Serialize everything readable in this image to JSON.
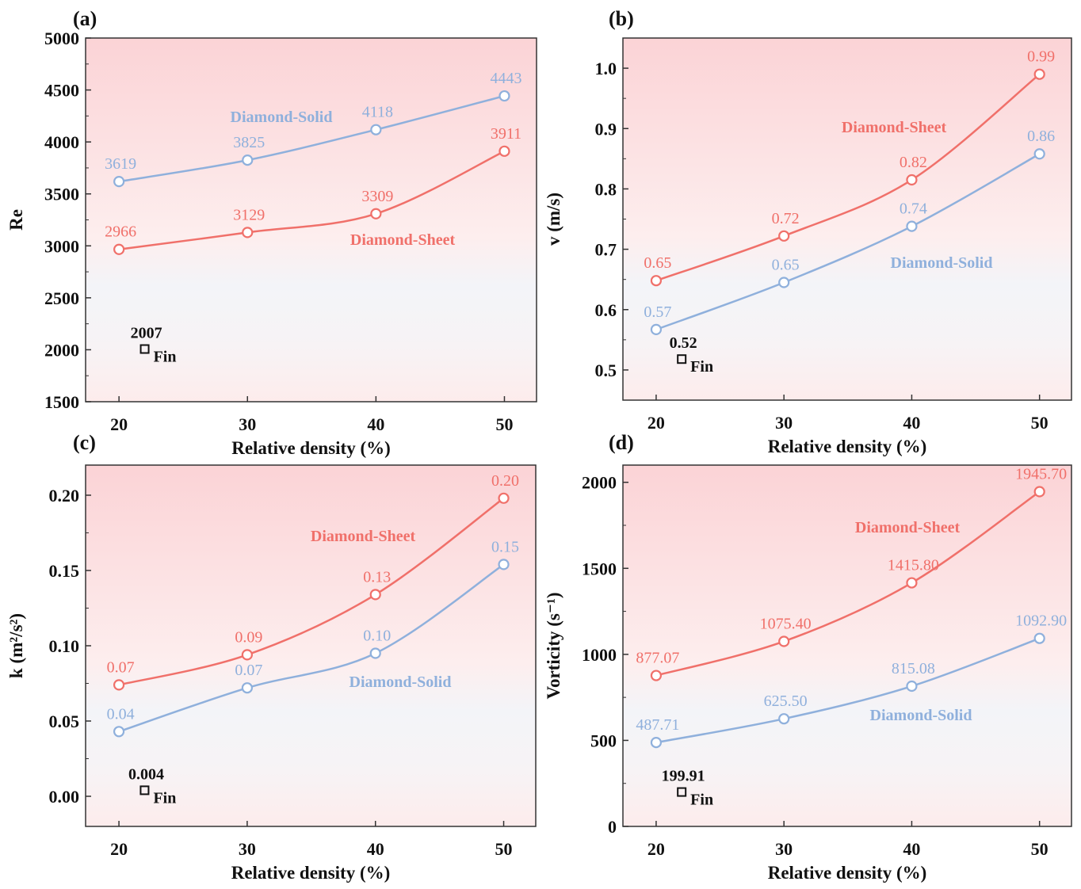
{
  "colors": {
    "sheet": "#f0706a",
    "solid": "#8fb0dc",
    "fin": "#111111",
    "bg_top": "#fbd6d8",
    "bg_bottom": "#f4f5f8"
  },
  "chart_data": [
    {
      "type": "line",
      "panel_label": "(a)",
      "xlabel": "Relative density (%)",
      "ylabel": "Re",
      "x": [
        20,
        30,
        40,
        50
      ],
      "xlim": [
        17.4,
        52.5
      ],
      "ylim": [
        1500,
        5000
      ],
      "xticks": [
        "20",
        "30",
        "40",
        "50"
      ],
      "yticks": [
        "1500",
        "2000",
        "2500",
        "3000",
        "3500",
        "4000",
        "4500",
        "5000"
      ],
      "series": [
        {
          "name": "Diamond-Solid",
          "key": "solid",
          "values": [
            3619,
            3825,
            4118,
            4443
          ],
          "labels": [
            "3619",
            "3825",
            "4118",
            "4443"
          ]
        },
        {
          "name": "Diamond-Sheet",
          "key": "sheet",
          "values": [
            2966,
            3129,
            3309,
            3911
          ],
          "labels": [
            "2966",
            "3129",
            "3309",
            "3911"
          ]
        }
      ],
      "fin": {
        "name": "Fin",
        "x": 22,
        "value": 2007,
        "label": "2007"
      }
    },
    {
      "type": "line",
      "panel_label": "(b)",
      "xlabel": "Relative density (%)",
      "ylabel": "v (m/s)",
      "x": [
        20,
        30,
        40,
        50
      ],
      "xlim": [
        17.4,
        52.5
      ],
      "ylim": [
        0.45,
        1.05
      ],
      "xticks": [
        "20",
        "30",
        "40",
        "50"
      ],
      "yticks": [
        "0.5",
        "0.6",
        "0.7",
        "0.8",
        "0.9",
        "1.0"
      ],
      "series": [
        {
          "name": "Diamond-Sheet",
          "key": "sheet",
          "values": [
            0.648,
            0.722,
            0.815,
            0.99
          ],
          "labels": [
            "0.65",
            "0.72",
            "0.82",
            "0.99"
          ]
        },
        {
          "name": "Diamond-Solid",
          "key": "solid",
          "values": [
            0.567,
            0.645,
            0.738,
            0.858
          ],
          "labels": [
            "0.57",
            "0.65",
            "0.74",
            "0.86"
          ]
        }
      ],
      "fin": {
        "name": "Fin",
        "x": 22,
        "value": 0.518,
        "label": "0.52"
      }
    },
    {
      "type": "line",
      "panel_label": "(c)",
      "xlabel": "Relative density (%)",
      "ylabel": "k (m²/s²)",
      "x": [
        20,
        30,
        40,
        50
      ],
      "xlim": [
        17.4,
        52.5
      ],
      "ylim": [
        -0.02,
        0.22
      ],
      "xticks": [
        "20",
        "30",
        "40",
        "50"
      ],
      "yticks": [
        "0.00",
        "0.05",
        "0.10",
        "0.15",
        "0.20"
      ],
      "series": [
        {
          "name": "Diamond-Sheet",
          "key": "sheet",
          "values": [
            0.074,
            0.094,
            0.134,
            0.198
          ],
          "labels": [
            "0.07",
            "0.09",
            "0.13",
            "0.20"
          ]
        },
        {
          "name": "Diamond-Solid",
          "key": "solid",
          "values": [
            0.043,
            0.072,
            0.095,
            0.154
          ],
          "labels": [
            "0.04",
            "0.07",
            "0.10",
            "0.15"
          ]
        }
      ],
      "fin": {
        "name": "Fin",
        "x": 22,
        "value": 0.004,
        "label": "0.004"
      }
    },
    {
      "type": "line",
      "panel_label": "(d)",
      "xlabel": "Relative density (%)",
      "ylabel": "Vorticity (s⁻¹)",
      "x": [
        20,
        30,
        40,
        50
      ],
      "xlim": [
        17.4,
        52.5
      ],
      "ylim": [
        0,
        2100
      ],
      "xticks": [
        "20",
        "30",
        "40",
        "50"
      ],
      "yticks": [
        "0",
        "500",
        "1000",
        "1500",
        "2000"
      ],
      "series": [
        {
          "name": "Diamond-Sheet",
          "key": "sheet",
          "values": [
            877.07,
            1075.4,
            1415.8,
            1945.7
          ],
          "labels": [
            "877.07",
            "1075.40",
            "1415.80",
            "1945.70"
          ]
        },
        {
          "name": "Diamond-Solid",
          "key": "solid",
          "values": [
            487.71,
            625.5,
            815.08,
            1092.9
          ],
          "labels": [
            "487.71",
            "625.50",
            "815.08",
            "1092.90"
          ]
        }
      ],
      "fin": {
        "name": "Fin",
        "x": 22,
        "value": 199.91,
        "label": "199.91"
      }
    }
  ]
}
